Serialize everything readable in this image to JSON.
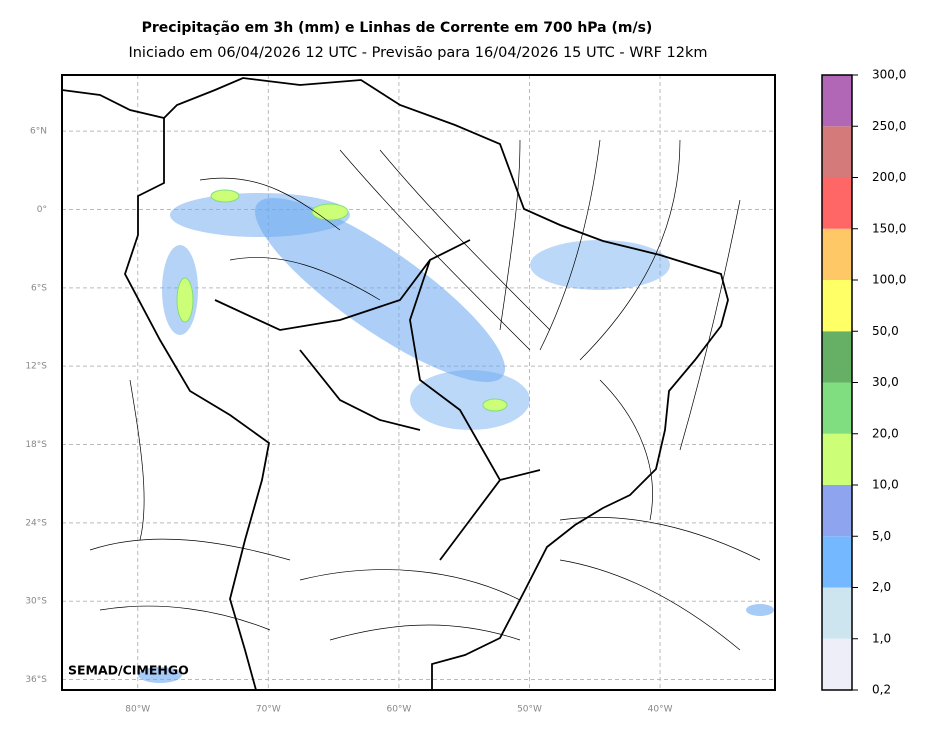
{
  "map": {
    "title": "Precipitação em 3h (mm) e Linhas de Corrente em 700 hPa (m/s)",
    "subtitle": "Iniciado em 06/04/2026 12 UTC - Previsão para 16/04/2026 15 UTC - WRF 12km",
    "credit": "SEMAD/CIMEHGO",
    "xlim": [
      -85.8,
      -31.2
    ],
    "ylim": [
      -36.8,
      10.3
    ],
    "xticks": [
      {
        "value": -80,
        "label": "80°W"
      },
      {
        "value": -70,
        "label": "70°W"
      },
      {
        "value": -60,
        "label": "60°W"
      },
      {
        "value": -50,
        "label": "50°W"
      },
      {
        "value": -40,
        "label": "40°W"
      }
    ],
    "yticks": [
      {
        "value": 6,
        "label": "6°N"
      },
      {
        "value": 0,
        "label": "0°"
      },
      {
        "value": -6,
        "label": "6°S"
      },
      {
        "value": -12,
        "label": "12°S"
      },
      {
        "value": -18,
        "label": "18°S"
      },
      {
        "value": -24,
        "label": "24°S"
      },
      {
        "value": -30,
        "label": "30°S"
      },
      {
        "value": -36,
        "label": "36°S"
      }
    ],
    "grid": true,
    "colorbar": {
      "levels": [
        {
          "value": 0.2,
          "label": "0,2"
        },
        {
          "value": 1,
          "label": "1,0"
        },
        {
          "value": 2,
          "label": "2,0"
        },
        {
          "value": 5,
          "label": "5,0"
        },
        {
          "value": 10,
          "label": "10,0"
        },
        {
          "value": 20,
          "label": "20,0"
        },
        {
          "value": 30,
          "label": "30,0"
        },
        {
          "value": 50,
          "label": "50,0"
        },
        {
          "value": 100,
          "label": "100,0"
        },
        {
          "value": 150,
          "label": "150,0"
        },
        {
          "value": 200,
          "label": "200,0"
        },
        {
          "value": 250,
          "label": "250,0"
        },
        {
          "value": 300,
          "label": "300,0"
        }
      ],
      "colors": [
        "#eeeef8",
        "#cde5ef",
        "#74b9ff",
        "#8ea4ee",
        "#ccff77",
        "#80dd80",
        "#66b066",
        "#ffff66",
        "#ffc866",
        "#ff6666",
        "#d47a7a",
        "#b266b6"
      ]
    }
  }
}
